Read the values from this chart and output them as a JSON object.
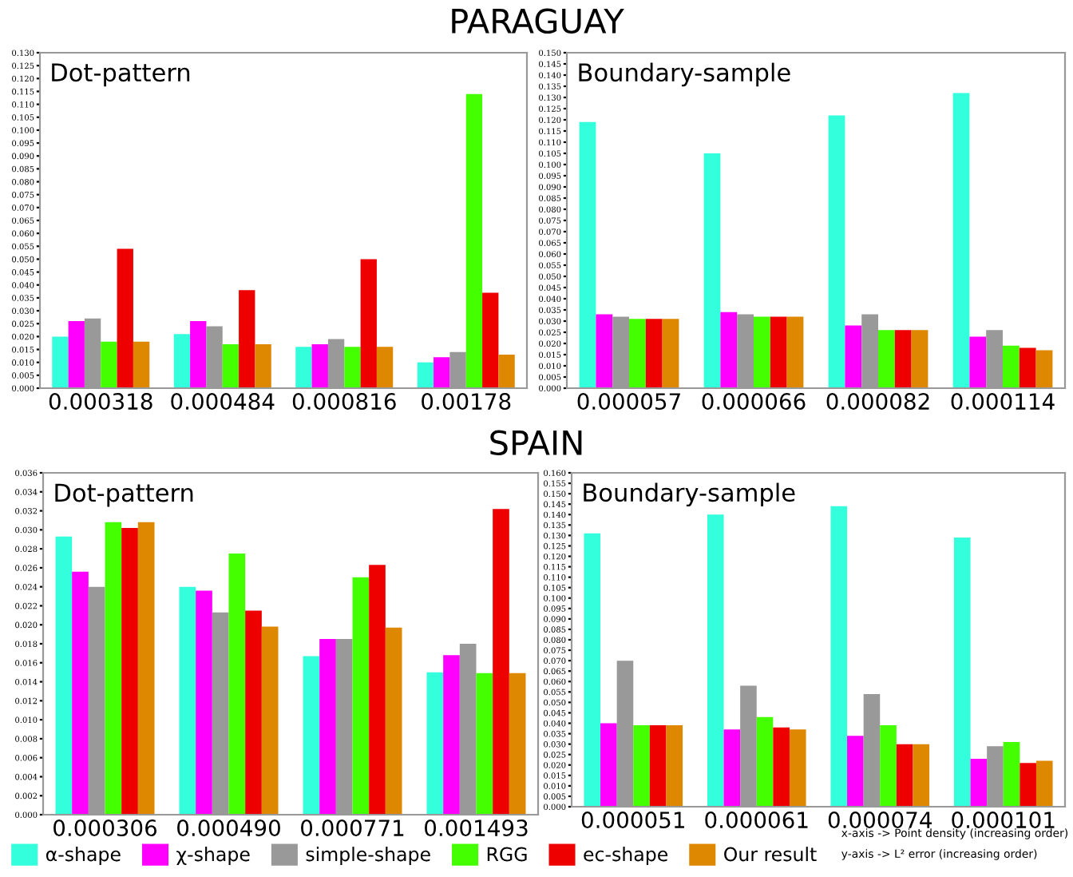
{
  "chart_data": [
    {
      "type": "bar",
      "title": "Dot-pattern",
      "annotations": [
        "PARAGUAY"
      ],
      "legend": "bottom",
      "grid": false,
      "categories": [
        "0.000318",
        "0.000484",
        "0.000816",
        "0.00178"
      ],
      "ylim": [
        0,
        0.13
      ],
      "yticks": [
        {
          "value": 0,
          "label": "0.000"
        },
        {
          "value": 0.005,
          "label": "0.005"
        },
        {
          "value": 0.01,
          "label": "0.010"
        },
        {
          "value": 0.015,
          "label": "0.015"
        },
        {
          "value": 0.02,
          "label": "0.020"
        },
        {
          "value": 0.025,
          "label": "0.025"
        },
        {
          "value": 0.03,
          "label": "0.030"
        },
        {
          "value": 0.035,
          "label": "0.035"
        },
        {
          "value": 0.04,
          "label": "0.040"
        },
        {
          "value": 0.045,
          "label": "0.045"
        },
        {
          "value": 0.05,
          "label": "0.050"
        },
        {
          "value": 0.055,
          "label": "0.055"
        },
        {
          "value": 0.06,
          "label": "0.060"
        },
        {
          "value": 0.065,
          "label": "0.065"
        },
        {
          "value": 0.07,
          "label": "0.070"
        },
        {
          "value": 0.075,
          "label": "0.075"
        },
        {
          "value": 0.08,
          "label": "0.080"
        },
        {
          "value": 0.085,
          "label": "0.085"
        },
        {
          "value": 0.09,
          "label": "0.090"
        },
        {
          "value": 0.095,
          "label": "0.095"
        },
        {
          "value": 0.1,
          "label": "0.100"
        },
        {
          "value": 0.105,
          "label": "0.105"
        },
        {
          "value": 0.11,
          "label": "0.110"
        },
        {
          "value": 0.115,
          "label": "0.115"
        },
        {
          "value": 0.12,
          "label": "0.120"
        },
        {
          "value": 0.125,
          "label": "0.125"
        },
        {
          "value": 0.13,
          "label": "0.130"
        }
      ],
      "series": [
        {
          "name": "α-shape",
          "color": "#33ffdd",
          "values": [
            0.02,
            0.021,
            0.016,
            0.01
          ]
        },
        {
          "name": "χ-shape",
          "color": "#ff00ff",
          "values": [
            0.026,
            0.026,
            0.017,
            0.012
          ]
        },
        {
          "name": "simple-shape",
          "color": "#999999",
          "values": [
            0.027,
            0.024,
            0.019,
            0.014
          ]
        },
        {
          "name": "RGG",
          "color": "#44ff00",
          "values": [
            0.018,
            0.017,
            0.016,
            0.114
          ]
        },
        {
          "name": "ec-shape",
          "color": "#ee0000",
          "values": [
            0.054,
            0.038,
            0.05,
            0.037
          ]
        },
        {
          "name": "Our result",
          "color": "#dd8800",
          "values": [
            0.018,
            0.017,
            0.016,
            0.013
          ]
        }
      ]
    },
    {
      "type": "bar",
      "title": "Boundary-sample",
      "legend": "bottom",
      "grid": false,
      "categories": [
        "0.000057",
        "0.000066",
        "0.000082",
        "0.000114"
      ],
      "ylim": [
        0,
        0.15
      ],
      "yticks": [
        {
          "value": 0,
          "label": "0.000"
        },
        {
          "value": 0.005,
          "label": "0.005"
        },
        {
          "value": 0.01,
          "label": "0.010"
        },
        {
          "value": 0.015,
          "label": "0.015"
        },
        {
          "value": 0.02,
          "label": "0.020"
        },
        {
          "value": 0.025,
          "label": "0.025"
        },
        {
          "value": 0.03,
          "label": "0.030"
        },
        {
          "value": 0.035,
          "label": "0.035"
        },
        {
          "value": 0.04,
          "label": "0.040"
        },
        {
          "value": 0.045,
          "label": "0.045"
        },
        {
          "value": 0.05,
          "label": "0.050"
        },
        {
          "value": 0.055,
          "label": "0.055"
        },
        {
          "value": 0.06,
          "label": "0.060"
        },
        {
          "value": 0.065,
          "label": "0.065"
        },
        {
          "value": 0.07,
          "label": "0.070"
        },
        {
          "value": 0.075,
          "label": "0.075"
        },
        {
          "value": 0.08,
          "label": "0.080"
        },
        {
          "value": 0.085,
          "label": "0.085"
        },
        {
          "value": 0.09,
          "label": "0.090"
        },
        {
          "value": 0.095,
          "label": "0.095"
        },
        {
          "value": 0.1,
          "label": "0.100"
        },
        {
          "value": 0.105,
          "label": "0.105"
        },
        {
          "value": 0.11,
          "label": "0.110"
        },
        {
          "value": 0.115,
          "label": "0.115"
        },
        {
          "value": 0.12,
          "label": "0.120"
        },
        {
          "value": 0.125,
          "label": "0.125"
        },
        {
          "value": 0.13,
          "label": "0.130"
        },
        {
          "value": 0.135,
          "label": "0.135"
        },
        {
          "value": 0.14,
          "label": "0.140"
        },
        {
          "value": 0.145,
          "label": "0.145"
        },
        {
          "value": 0.15,
          "label": "0.150"
        }
      ],
      "series": [
        {
          "color": "#33ffdd",
          "values": [
            0.119,
            0.105,
            0.122,
            0.132
          ]
        },
        {
          "color": "#ff00ff",
          "values": [
            0.033,
            0.034,
            0.028,
            0.023
          ]
        },
        {
          "color": "#999999",
          "values": [
            0.032,
            0.033,
            0.033,
            0.026
          ]
        },
        {
          "color": "#44ff00",
          "values": [
            0.031,
            0.032,
            0.026,
            0.019
          ]
        },
        {
          "color": "#ee0000",
          "values": [
            0.031,
            0.032,
            0.026,
            0.018
          ]
        },
        {
          "color": "#dd8800",
          "values": [
            0.031,
            0.032,
            0.026,
            0.017
          ]
        }
      ]
    },
    {
      "type": "bar",
      "title": "Dot-pattern",
      "annotations": [
        "SPAIN"
      ],
      "legend": "bottom",
      "grid": false,
      "categories": [
        "0.000306",
        "0.000490",
        "0.000771",
        "0.001493"
      ],
      "ylim": [
        0,
        0.036
      ],
      "yticks": [
        {
          "value": 0,
          "label": "0.000"
        },
        {
          "value": 0.002,
          "label": "0.002"
        },
        {
          "value": 0.004,
          "label": "0.004"
        },
        {
          "value": 0.006,
          "label": "0.006"
        },
        {
          "value": 0.008,
          "label": "0.008"
        },
        {
          "value": 0.01,
          "label": "0.010"
        },
        {
          "value": 0.012,
          "label": "0.012"
        },
        {
          "value": 0.014,
          "label": "0.014"
        },
        {
          "value": 0.016,
          "label": "0.016"
        },
        {
          "value": 0.018,
          "label": "0.018"
        },
        {
          "value": 0.02,
          "label": "0.020"
        },
        {
          "value": 0.022,
          "label": "0.022"
        },
        {
          "value": 0.024,
          "label": "0.024"
        },
        {
          "value": 0.026,
          "label": "0.026"
        },
        {
          "value": 0.028,
          "label": "0.028"
        },
        {
          "value": 0.03,
          "label": "0.030"
        },
        {
          "value": 0.032,
          "label": "0.032"
        },
        {
          "value": 0.034,
          "label": "0.034"
        },
        {
          "value": 0.036,
          "label": "0.036"
        }
      ],
      "series": [
        {
          "color": "#33ffdd",
          "values": [
            0.0293,
            0.024,
            0.0167,
            0.015
          ]
        },
        {
          "color": "#ff00ff",
          "values": [
            0.0256,
            0.0236,
            0.0185,
            0.0168
          ]
        },
        {
          "color": "#999999",
          "values": [
            0.024,
            0.0213,
            0.0185,
            0.018
          ]
        },
        {
          "color": "#44ff00",
          "values": [
            0.0308,
            0.0275,
            0.025,
            0.0149
          ]
        },
        {
          "color": "#ee0000",
          "values": [
            0.0302,
            0.0215,
            0.0263,
            0.0322
          ]
        },
        {
          "color": "#dd8800",
          "values": [
            0.0308,
            0.0198,
            0.0197,
            0.0149
          ]
        }
      ]
    },
    {
      "type": "bar",
      "title": "Boundary-sample",
      "annotations": [
        "x-axis -> Point density (increasing order)",
        "y-axis -> L² error (increasing order)"
      ],
      "legend": "bottom",
      "grid": false,
      "categories": [
        "0.000051",
        "0.000061",
        "0.000074",
        "0.000101"
      ],
      "ylim": [
        0,
        0.16
      ],
      "yticks": [
        {
          "value": 0,
          "label": "0.000"
        },
        {
          "value": 0.005,
          "label": "0.005"
        },
        {
          "value": 0.01,
          "label": "0.010"
        },
        {
          "value": 0.015,
          "label": "0.015"
        },
        {
          "value": 0.02,
          "label": "0.020"
        },
        {
          "value": 0.025,
          "label": "0.025"
        },
        {
          "value": 0.03,
          "label": "0.030"
        },
        {
          "value": 0.035,
          "label": "0.035"
        },
        {
          "value": 0.04,
          "label": "0.040"
        },
        {
          "value": 0.045,
          "label": "0.045"
        },
        {
          "value": 0.05,
          "label": "0.050"
        },
        {
          "value": 0.055,
          "label": "0.055"
        },
        {
          "value": 0.06,
          "label": "0.060"
        },
        {
          "value": 0.065,
          "label": "0.065"
        },
        {
          "value": 0.07,
          "label": "0.070"
        },
        {
          "value": 0.075,
          "label": "0.075"
        },
        {
          "value": 0.08,
          "label": "0.080"
        },
        {
          "value": 0.085,
          "label": "0.085"
        },
        {
          "value": 0.09,
          "label": "0.090"
        },
        {
          "value": 0.095,
          "label": "0.095"
        },
        {
          "value": 0.1,
          "label": "0.100"
        },
        {
          "value": 0.105,
          "label": "0.105"
        },
        {
          "value": 0.11,
          "label": "0.110"
        },
        {
          "value": 0.115,
          "label": "0.115"
        },
        {
          "value": 0.12,
          "label": "0.120"
        },
        {
          "value": 0.125,
          "label": "0.125"
        },
        {
          "value": 0.13,
          "label": "0.130"
        },
        {
          "value": 0.135,
          "label": "0.135"
        },
        {
          "value": 0.14,
          "label": "0.140"
        },
        {
          "value": 0.145,
          "label": "0.145"
        },
        {
          "value": 0.15,
          "label": "0.150"
        },
        {
          "value": 0.155,
          "label": "0.155"
        },
        {
          "value": 0.16,
          "label": "0.160"
        }
      ],
      "series": [
        {
          "color": "#33ffdd",
          "values": [
            0.131,
            0.14,
            0.144,
            0.129
          ]
        },
        {
          "color": "#ff00ff",
          "values": [
            0.04,
            0.037,
            0.034,
            0.023
          ]
        },
        {
          "color": "#999999",
          "values": [
            0.07,
            0.058,
            0.054,
            0.029
          ]
        },
        {
          "color": "#44ff00",
          "values": [
            0.039,
            0.043,
            0.039,
            0.031
          ]
        },
        {
          "color": "#ee0000",
          "values": [
            0.039,
            0.038,
            0.03,
            0.021
          ]
        },
        {
          "color": "#dd8800",
          "values": [
            0.039,
            0.037,
            0.03,
            0.022
          ]
        }
      ]
    }
  ]
}
